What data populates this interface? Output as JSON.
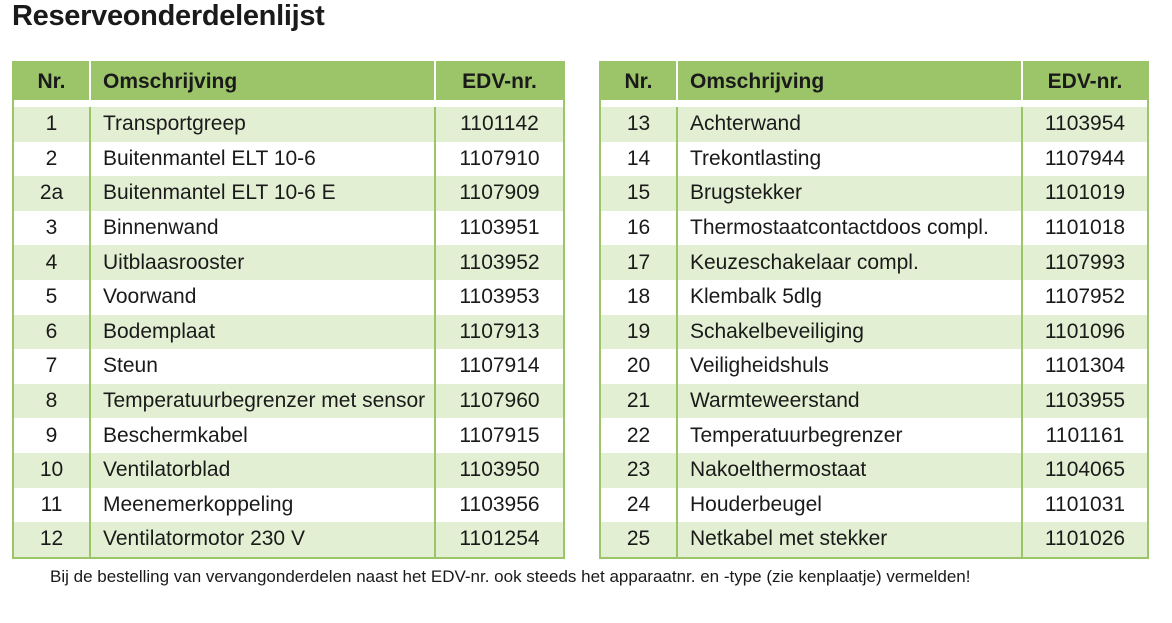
{
  "title": "Reserveonderdelenlijst",
  "headers": {
    "nr": "Nr.",
    "desc": "Omschrijving",
    "edv": "EDV-nr."
  },
  "left_rows": [
    {
      "nr": "1",
      "desc": "Transportgreep",
      "edv": "1101142"
    },
    {
      "nr": "2",
      "desc": "Buitenmantel ELT 10-6",
      "edv": "1107910"
    },
    {
      "nr": "2a",
      "desc": "Buitenmantel ELT 10-6 E",
      "edv": "1107909"
    },
    {
      "nr": "3",
      "desc": "Binnenwand",
      "edv": "1103951"
    },
    {
      "nr": "4",
      "desc": "Uitblaasrooster",
      "edv": "1103952"
    },
    {
      "nr": "5",
      "desc": "Voorwand",
      "edv": "1103953"
    },
    {
      "nr": "6",
      "desc": "Bodemplaat",
      "edv": "1107913"
    },
    {
      "nr": "7",
      "desc": "Steun",
      "edv": "1107914"
    },
    {
      "nr": "8",
      "desc": "Temperatuurbegrenzer met sensor",
      "edv": "1107960"
    },
    {
      "nr": "9",
      "desc": "Beschermkabel",
      "edv": "1107915"
    },
    {
      "nr": "10",
      "desc": "Ventilatorblad",
      "edv": "1103950"
    },
    {
      "nr": "11",
      "desc": "Meenemerkoppeling",
      "edv": "1103956"
    },
    {
      "nr": "12",
      "desc": "Ventilatormotor 230 V",
      "edv": "1101254"
    }
  ],
  "right_rows": [
    {
      "nr": "13",
      "desc": "Achterwand",
      "edv": "1103954"
    },
    {
      "nr": "14",
      "desc": "Trekontlasting",
      "edv": "1107944"
    },
    {
      "nr": "15",
      "desc": "Brugstekker",
      "edv": "1101019"
    },
    {
      "nr": "16",
      "desc": "Thermostaatcontactdoos compl.",
      "edv": "1101018"
    },
    {
      "nr": "17",
      "desc": "Keuzeschakelaar compl.",
      "edv": "1107993"
    },
    {
      "nr": "18",
      "desc": "Klembalk 5dlg",
      "edv": "1107952"
    },
    {
      "nr": "19",
      "desc": "Schakelbeveiliging",
      "edv": "1101096"
    },
    {
      "nr": "20",
      "desc": "Veiligheidshuls",
      "edv": "1101304"
    },
    {
      "nr": "21",
      "desc": "Warmteweerstand",
      "edv": "1103955"
    },
    {
      "nr": "22",
      "desc": "Temperatuurbegrenzer",
      "edv": "1101161"
    },
    {
      "nr": "23",
      "desc": "Nakoelthermostaat",
      "edv": "1104065"
    },
    {
      "nr": "24",
      "desc": "Houderbeugel",
      "edv": "1101031"
    },
    {
      "nr": "25",
      "desc": "Netkabel met stekker",
      "edv": "1101026"
    }
  ],
  "footnote": "Bij de bestelling van vervangonderdelen naast het EDV-nr. ook steeds het apparaatnr. en -type (zie kenplaatje) vermelden!",
  "colors": {
    "header_green": "#9cc56a",
    "row_tint": "#e3efd3"
  }
}
